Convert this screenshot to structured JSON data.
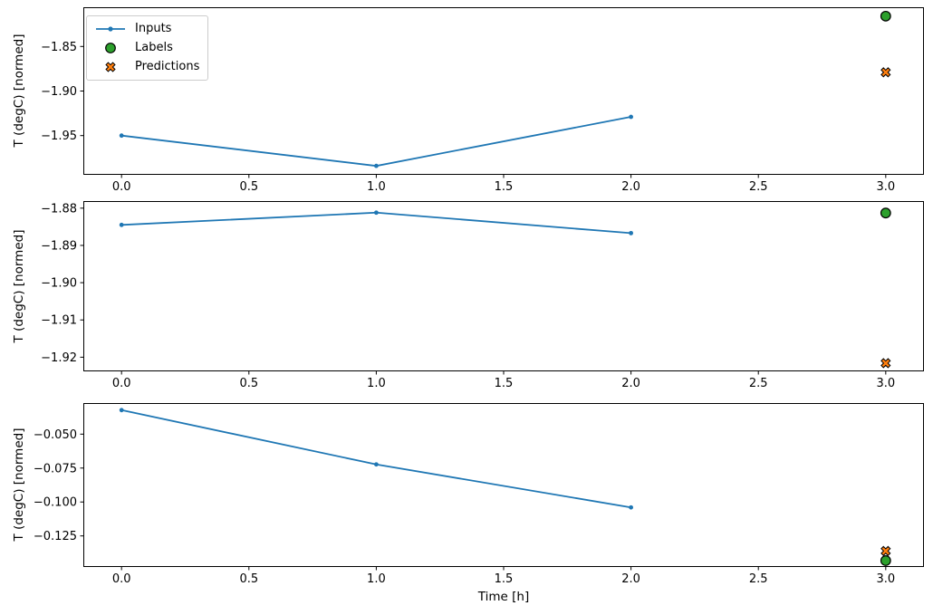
{
  "figure": {
    "background": "#ffffff"
  },
  "colors": {
    "inputs": "#1f77b4",
    "labels": "#2ca02c",
    "predictions": "#ff7f0e",
    "marker_edge": "#000000",
    "axes": "#000000",
    "tick_text": "#000000",
    "legend_border": "#cccccc"
  },
  "legend": {
    "position": "upper-left-subplot-1",
    "entries": [
      {
        "id": "inputs",
        "label": "Inputs",
        "marker": "dot-line"
      },
      {
        "id": "labels",
        "label": "Labels",
        "marker": "circle"
      },
      {
        "id": "predictions",
        "label": "Predictions",
        "marker": "X"
      }
    ]
  },
  "xaxis": {
    "label": "Time [h]",
    "ticks": [
      0.0,
      0.5,
      1.0,
      1.5,
      2.0,
      2.5,
      3.0
    ],
    "lim": [
      -0.15,
      3.15
    ],
    "tick_decimals": 1
  },
  "chart_data": [
    {
      "type": "line",
      "subplot": 1,
      "ylabel": "T (degC) [normed]",
      "yticks": [
        -1.85,
        -1.9,
        -1.95
      ],
      "ytick_decimals": 2,
      "ylim": [
        -1.994,
        -1.806
      ],
      "grid": false,
      "series": [
        {
          "name": "Inputs",
          "marker": "dot-line",
          "color_key": "inputs",
          "x": [
            0,
            1,
            2
          ],
          "y": [
            -1.95,
            -1.984,
            -1.929
          ]
        },
        {
          "name": "Labels",
          "marker": "circle",
          "color_key": "labels",
          "x": [
            3
          ],
          "y": [
            -1.816
          ]
        },
        {
          "name": "Predictions",
          "marker": "X",
          "color_key": "predictions",
          "x": [
            3
          ],
          "y": [
            -1.879
          ]
        }
      ]
    },
    {
      "type": "line",
      "subplot": 2,
      "ylabel": "T (degC) [normed]",
      "yticks": [
        -1.88,
        -1.89,
        -1.9,
        -1.91,
        -1.92
      ],
      "ytick_decimals": 2,
      "ylim": [
        -1.9238,
        -1.8781
      ],
      "grid": false,
      "series": [
        {
          "name": "Inputs",
          "marker": "dot-line",
          "color_key": "inputs",
          "x": [
            0,
            1,
            2
          ],
          "y": [
            -1.8845,
            -1.8812,
            -1.8867
          ]
        },
        {
          "name": "Labels",
          "marker": "circle",
          "color_key": "labels",
          "x": [
            3
          ],
          "y": [
            -1.8813
          ]
        },
        {
          "name": "Predictions",
          "marker": "X",
          "color_key": "predictions",
          "x": [
            3
          ],
          "y": [
            -1.9216
          ]
        }
      ]
    },
    {
      "type": "line",
      "subplot": 3,
      "ylabel": "T (degC) [normed]",
      "yticks": [
        -0.05,
        -0.075,
        -0.1,
        -0.125
      ],
      "ytick_decimals": 3,
      "ylim": [
        -0.1479,
        -0.0271
      ],
      "grid": false,
      "series": [
        {
          "name": "Inputs",
          "marker": "dot-line",
          "color_key": "inputs",
          "x": [
            0,
            1,
            2
          ],
          "y": [
            -0.0323,
            -0.0723,
            -0.104
          ]
        },
        {
          "name": "Labels",
          "marker": "circle",
          "color_key": "labels",
          "x": [
            3
          ],
          "y": [
            -0.1432
          ]
        },
        {
          "name": "Predictions",
          "marker": "X",
          "color_key": "predictions",
          "x": [
            3
          ],
          "y": [
            -0.1361
          ]
        }
      ]
    }
  ]
}
